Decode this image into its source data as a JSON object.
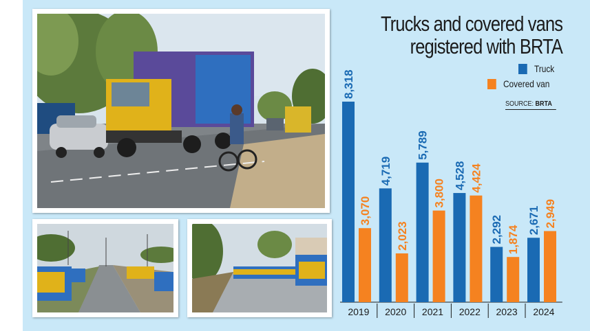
{
  "colors": {
    "panel": "#c9e8f8",
    "truck": "#1a6ab3",
    "covered_van": "#f58220",
    "title": "#1b1b1b"
  },
  "photos": [
    {
      "name": "main-photo",
      "description_icon": "truck-on-road-photo"
    },
    {
      "name": "left-small-photo",
      "description_icon": "parked-trucks-roadside-photo"
    },
    {
      "name": "right-small-photo",
      "description_icon": "trucks-lined-up-photo"
    }
  ],
  "chart_data": {
    "type": "bar",
    "title": "Trucks and covered vans registered with BRTA",
    "title_lines": [
      "Trucks and covered vans",
      "registered with BRTA"
    ],
    "source_prefix": "SOURCE: ",
    "source_name": "BRTA",
    "categories": [
      "2019",
      "2020",
      "2021",
      "2022",
      "2023",
      "2024"
    ],
    "series": [
      {
        "name": "Truck",
        "values": [
          8318,
          4719,
          5789,
          4528,
          2292,
          2671
        ],
        "labels": [
          "8,318",
          "4,719",
          "5,789",
          "4,528",
          "2,292",
          "2,671"
        ]
      },
      {
        "name": "Covered van",
        "values": [
          3070,
          2023,
          3800,
          4424,
          1874,
          2949
        ],
        "labels": [
          "3,070",
          "2,023",
          "3,800",
          "4,424",
          "1,874",
          "2,949"
        ]
      }
    ],
    "ylim": [
      0,
      8318
    ],
    "legend": "top-right",
    "grid": false
  }
}
